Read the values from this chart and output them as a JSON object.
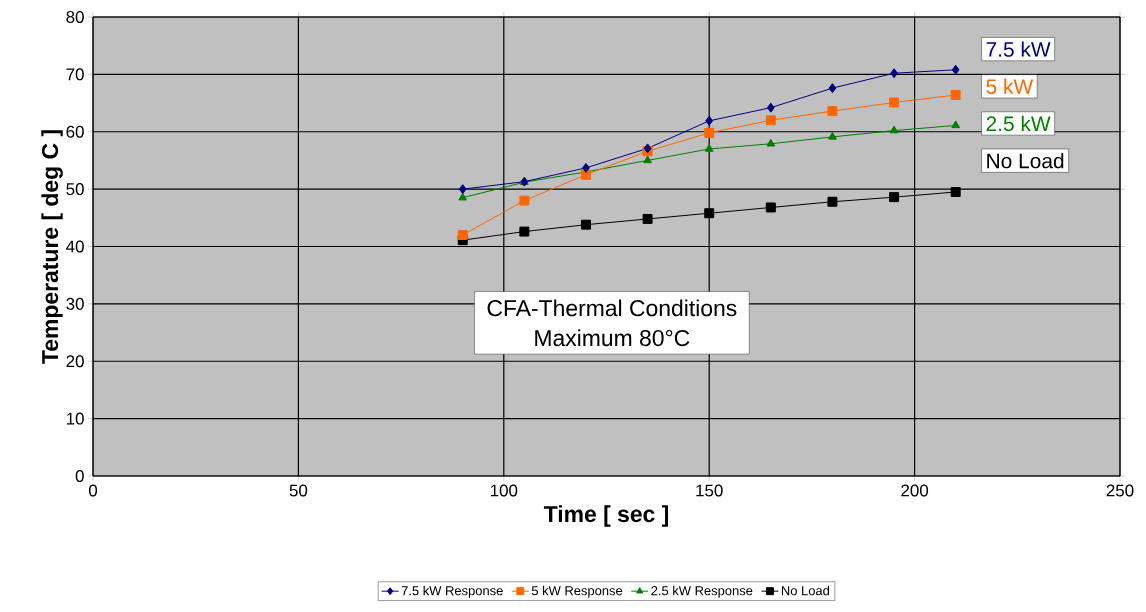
{
  "chart_data": {
    "type": "line",
    "xlabel": "Time [ sec ]",
    "ylabel": "Temperature [ deg C ]",
    "x": [
      90,
      105,
      120,
      135,
      150,
      165,
      180,
      195,
      210
    ],
    "series": [
      {
        "name": "7.5 kW Response",
        "color": "#000080",
        "marker": "diamond",
        "values": [
          50.0,
          51.3,
          53.7,
          57.1,
          61.9,
          64.2,
          67.6,
          70.2,
          70.8
        ]
      },
      {
        "name": "5 kW Response",
        "color": "#ff6600",
        "marker": "square",
        "values": [
          42.0,
          48.0,
          52.5,
          56.6,
          59.8,
          62.0,
          63.6,
          65.1,
          66.4
        ]
      },
      {
        "name": "2.5 kW Response",
        "color": "#008000",
        "marker": "triangle",
        "values": [
          48.5,
          51.2,
          53.0,
          55.0,
          57.0,
          57.9,
          59.1,
          60.2,
          61.1
        ]
      },
      {
        "name": "No Load",
        "color": "#000000",
        "marker": "square",
        "values": [
          41.1,
          42.6,
          43.8,
          44.8,
          45.8,
          46.8,
          47.8,
          48.6,
          49.5
        ]
      }
    ],
    "annotations": [
      "7.5 kW",
      "5 kW",
      "2.5 kW",
      "No Load",
      "CFA-Thermal Conditions",
      "Maximum 80°C"
    ],
    "xlim": [
      0,
      250
    ],
    "ylim": [
      0,
      80
    ],
    "xticks": [
      0,
      50,
      100,
      150,
      200,
      250
    ],
    "yticks": [
      0,
      10,
      20,
      30,
      40,
      50,
      60,
      70,
      80
    ],
    "grid": true,
    "legend": "bottom",
    "line_style": "solid"
  }
}
